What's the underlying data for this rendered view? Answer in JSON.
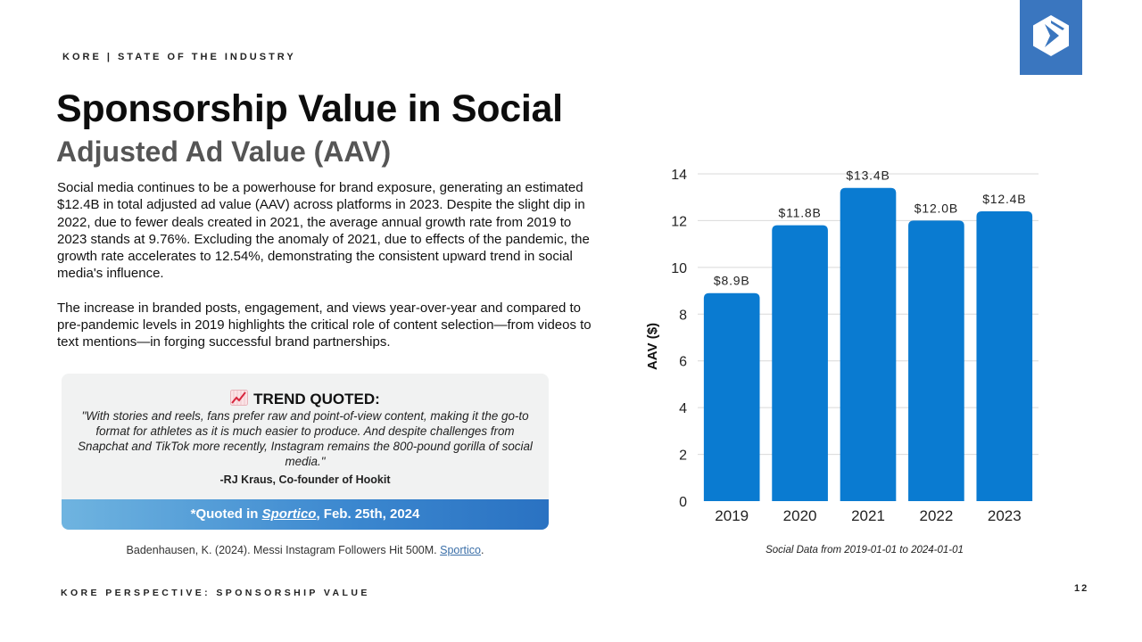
{
  "header": {
    "brand": "KORE | STATE OF THE INDUSTRY"
  },
  "logo": {
    "icon": "kore-hexagon-logo-icon",
    "color": "#3a76bf"
  },
  "title": "Sponsorship Value in Social",
  "subtitle": "Adjusted Ad Value (AAV)",
  "body": {
    "paragraph_1": "Social media continues to be a powerhouse for brand exposure, generating an estimated $12.4B in total adjusted ad value (AAV) across platforms in 2023. Despite the slight dip in 2022, due to fewer deals created in 2021, the average annual growth rate from 2019 to 2023 stands at 9.76%. Excluding the anomaly of 2021, due to effects of the pandemic, the growth rate accelerates to 12.54%, demonstrating the consistent upward trend in social media's influence.",
    "paragraph_2": "The increase in branded posts, engagement, and views year-over-year and compared to pre-pandemic levels in 2019 highlights the critical role of content selection—from videos to text mentions—in forging successful brand partnerships."
  },
  "quote": {
    "icon": "trend-chart-icon",
    "heading": "TREND QUOTED:",
    "text": "\"With stories and reels, fans prefer raw and point-of-view content, making it the go-to format for athletes as it is much easier to produce. And despite challenges from Snapchat and TikTok more recently, Instagram remains the 800-pound gorilla of social media.\"",
    "author": "-RJ Kraus, Co-founder of Hookit",
    "banner_prefix": "*Quoted in ",
    "banner_source": "Sportico",
    "banner_suffix": ", Feb. 25th, 2024"
  },
  "citation": {
    "text": "Badenhausen, K. (2024). Messi Instagram Followers Hit 500M. ",
    "link": "Sportico",
    "suffix": "."
  },
  "footer": {
    "text": "KORE PERSPECTIVE: SPONSORSHIP VALUE",
    "page": "12"
  },
  "chart_data": {
    "type": "bar",
    "categories": [
      "2019",
      "2020",
      "2021",
      "2022",
      "2023"
    ],
    "values": [
      8.9,
      11.8,
      13.4,
      12.0,
      12.4
    ],
    "data_labels": [
      "$8.9B",
      "$11.8B",
      "$13.4B",
      "$12.0B",
      "$12.4B"
    ],
    "ylabel": "AAV ($)",
    "ylim": [
      0,
      14
    ],
    "yticks": [
      0,
      2,
      4,
      6,
      8,
      10,
      12,
      14
    ],
    "grid": true,
    "bar_color": "#0a7bd1",
    "note": "Social Data from 2019-01-01 to 2024-01-01"
  }
}
